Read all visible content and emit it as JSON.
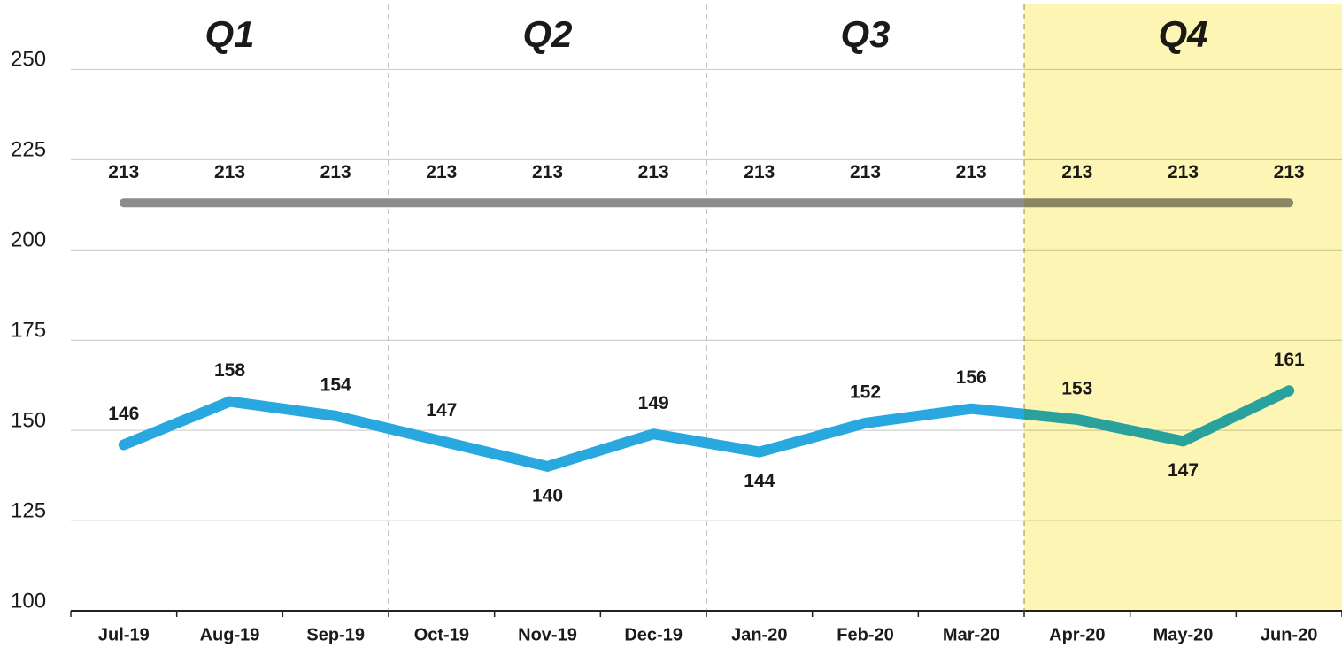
{
  "chart_data": {
    "type": "line",
    "categories": [
      "Jul-19",
      "Aug-19",
      "Sep-19",
      "Oct-19",
      "Nov-19",
      "Dec-19",
      "Jan-20",
      "Feb-20",
      "Mar-20",
      "Apr-20",
      "May-20",
      "Jun-20"
    ],
    "quarters": [
      "Q1",
      "Q2",
      "Q3",
      "Q4"
    ],
    "highlight_quarter": 3,
    "highlight_color": "#fdf5b3",
    "series": [
      {
        "color": "#8c8c8c",
        "values": [
          213,
          213,
          213,
          213,
          213,
          213,
          213,
          213,
          213,
          213,
          213,
          213
        ]
      },
      {
        "color": "#29a8e0",
        "values": [
          146,
          158,
          154,
          147,
          140,
          149,
          144,
          152,
          156,
          153,
          147,
          161
        ]
      }
    ],
    "ylim": [
      100,
      268
    ],
    "yticks": [
      100,
      125,
      150,
      175,
      200,
      225,
      250
    ],
    "grid": true
  }
}
